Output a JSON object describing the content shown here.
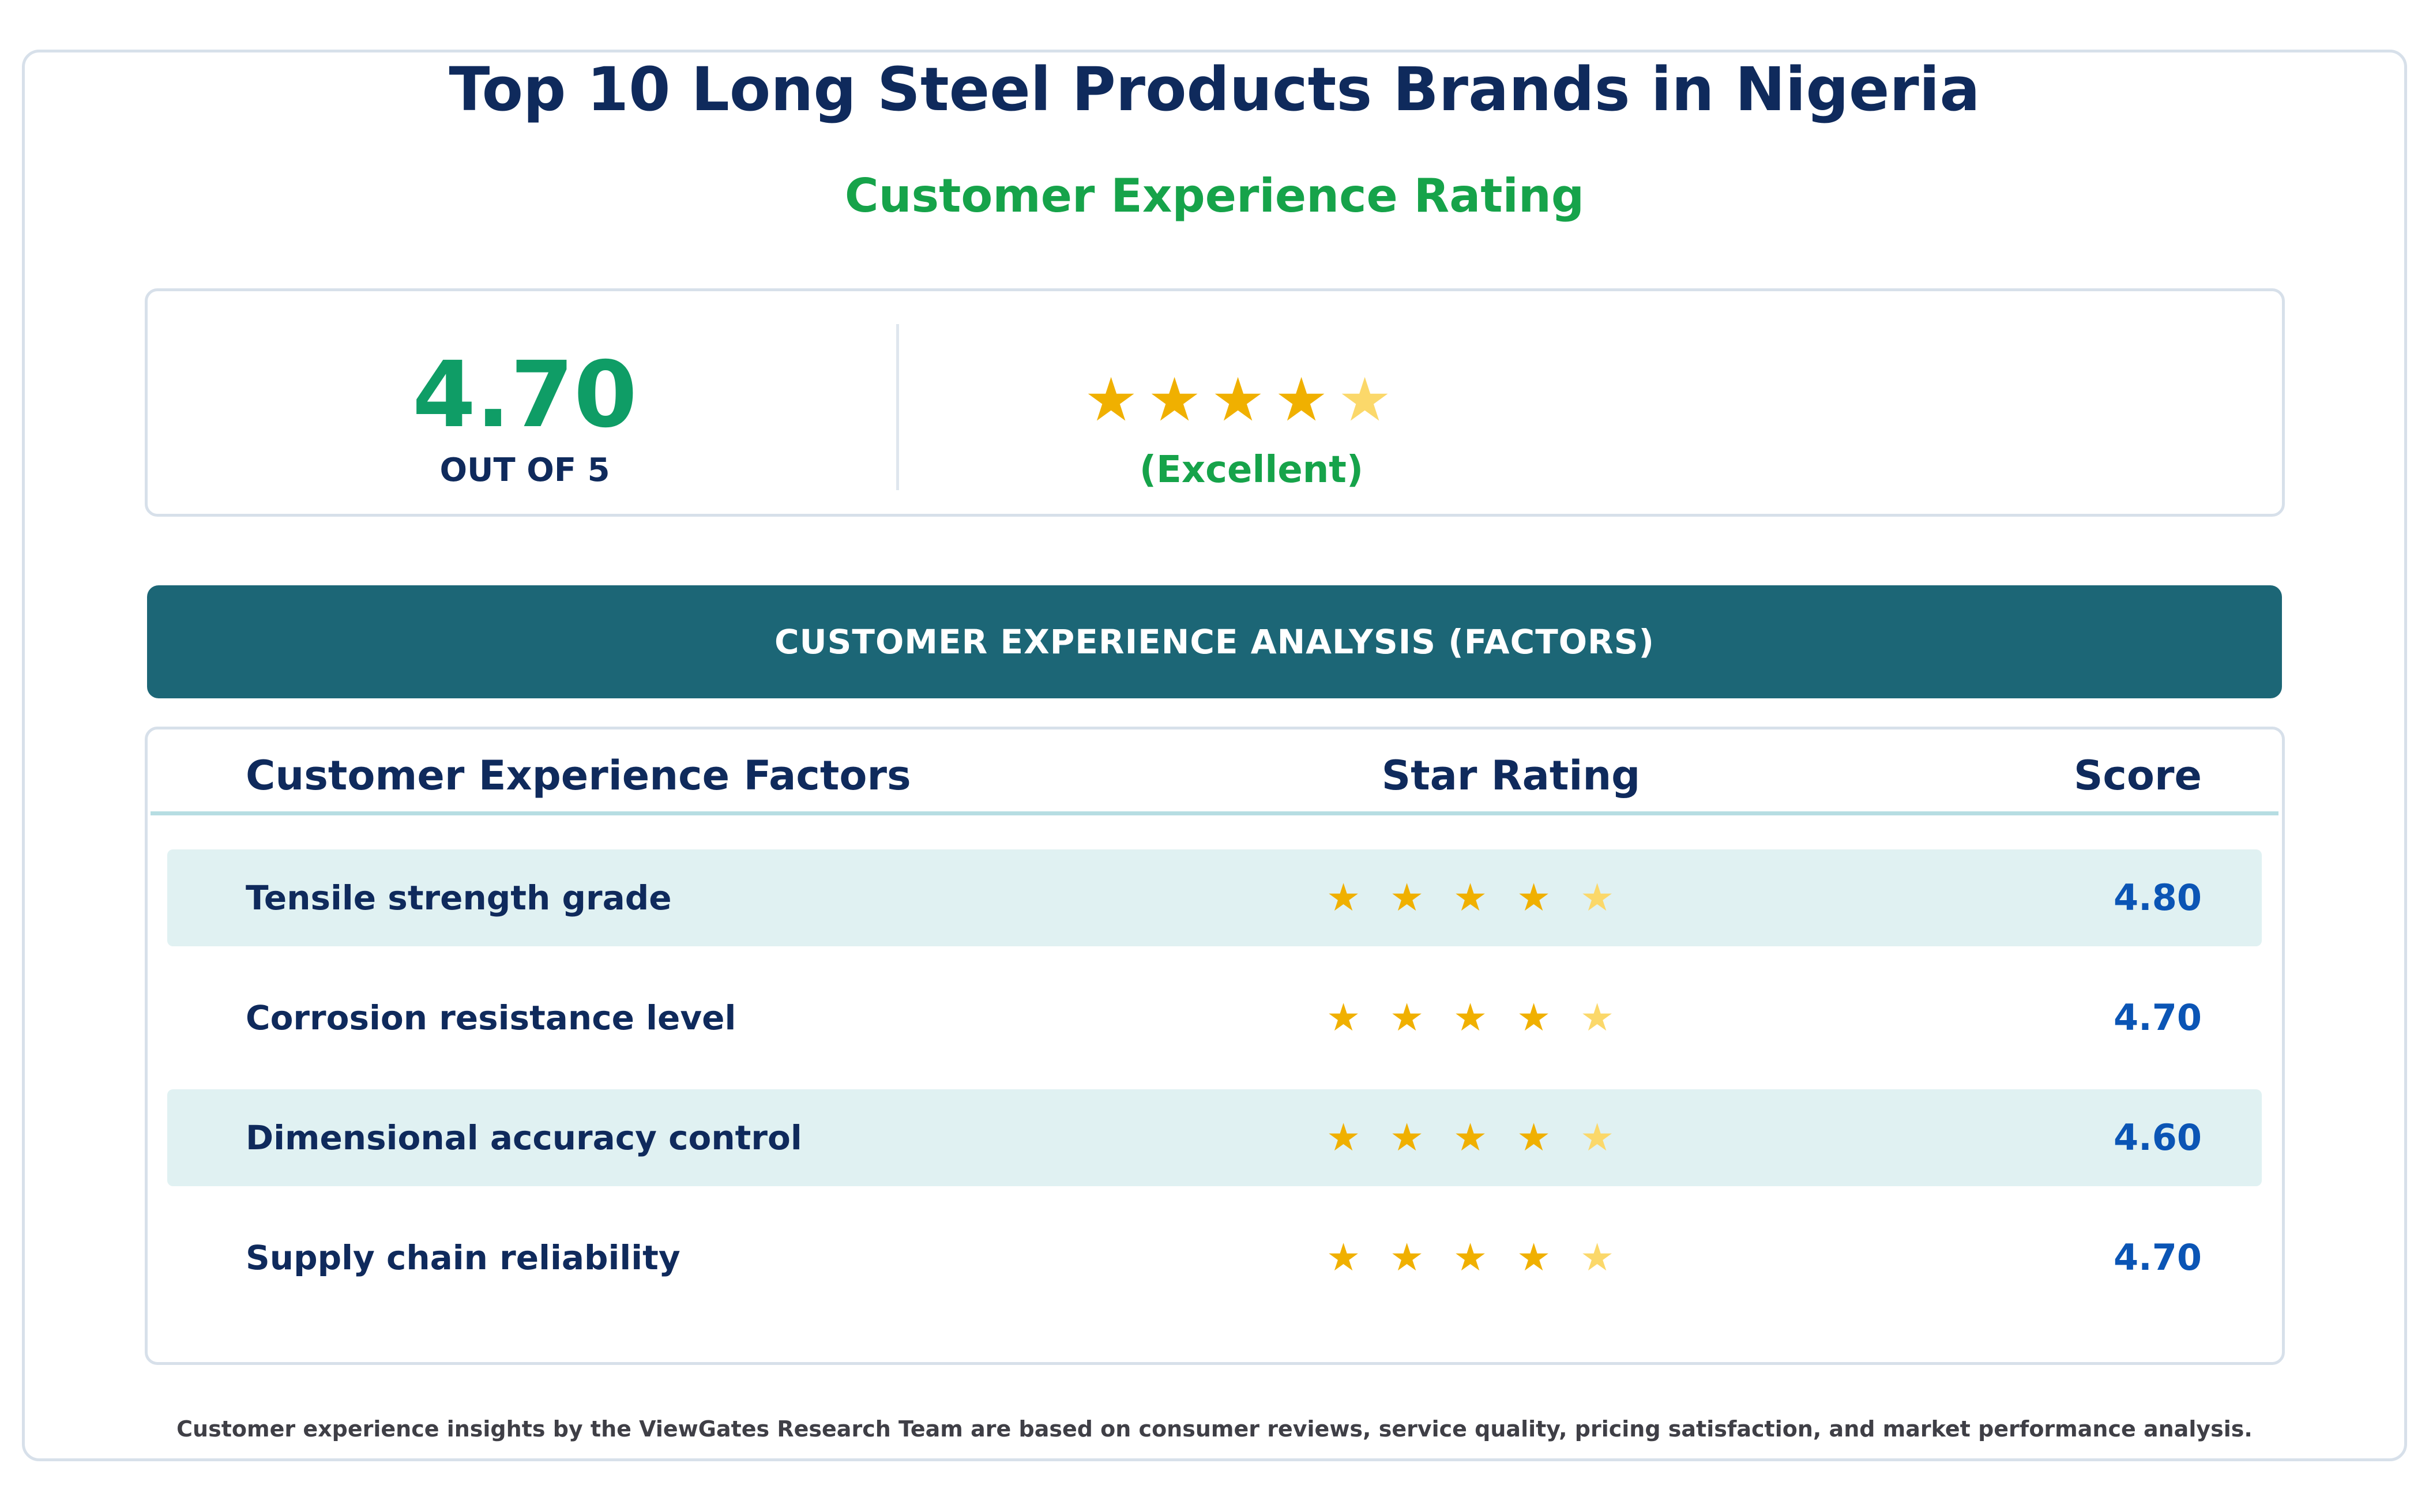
{
  "header": {
    "title": "Top 10 Long Steel Products Brands in Nigeria",
    "subtitle": "Customer Experience Rating"
  },
  "summary": {
    "score": "4.70",
    "out_of": "OUT OF 5",
    "rating_word": "(Excellent)",
    "stars": [
      {
        "glyph": "★",
        "kind": "full",
        "icon": "star-full-icon"
      },
      {
        "glyph": "★",
        "kind": "full",
        "icon": "star-full-icon"
      },
      {
        "glyph": "★",
        "kind": "full",
        "icon": "star-full-icon"
      },
      {
        "glyph": "★",
        "kind": "full",
        "icon": "star-full-icon"
      },
      {
        "glyph": "★",
        "kind": "light",
        "icon": "star-partial-icon"
      }
    ]
  },
  "analysis": {
    "banner": "CUSTOMER EXPERIENCE ANALYSIS (FACTORS)",
    "columns": {
      "factor": "Customer Experience Factors",
      "stars": "Star Rating",
      "score": "Score"
    },
    "rows": [
      {
        "factor": "Tensile strength grade",
        "score": "4.80"
      },
      {
        "factor": "Corrosion resistance level",
        "score": "4.70"
      },
      {
        "factor": "Dimensional accuracy control",
        "score": "4.60"
      },
      {
        "factor": "Supply chain reliability",
        "score": "4.70"
      }
    ],
    "row_star_glyph": "★"
  },
  "colors": {
    "title": "#0f2a5c",
    "subtitle": "#16a34a",
    "score_big": "#0f9d66",
    "banner_bg": "#1c6676",
    "row_shade": "#e0f1f2",
    "star_full": "#f0b000",
    "star_light": "#fbd86a",
    "score_blue": "#0b55b5"
  },
  "footer": {
    "note": "Customer experience insights by the ViewGates Research Team are based on consumer reviews, service quality, pricing satisfaction, and market performance analysis."
  }
}
